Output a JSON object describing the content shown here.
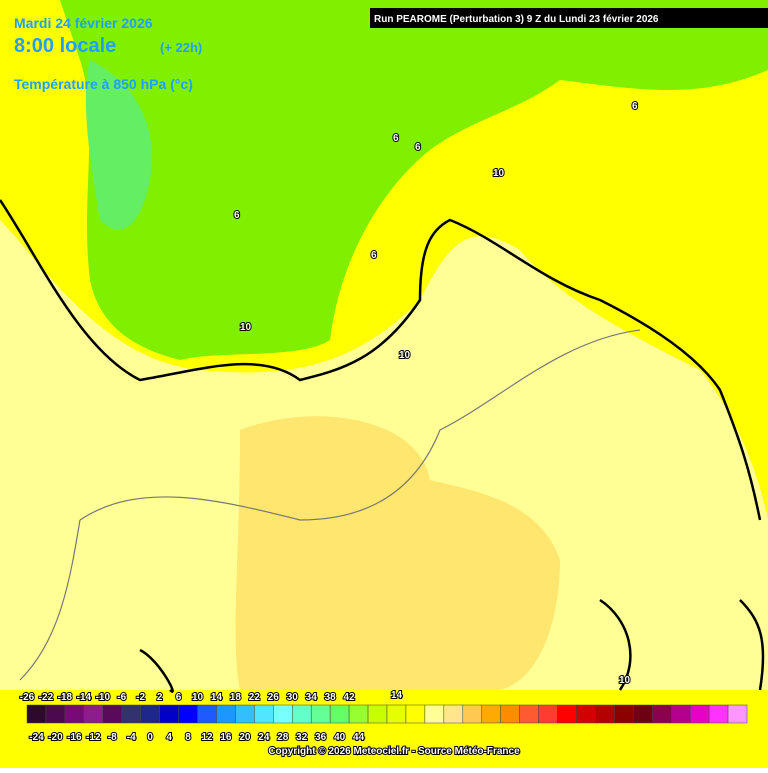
{
  "header": {
    "date": "Mardi 24 février 2026",
    "time": "8:00 locale",
    "offset": "(+ 22h)",
    "variable": "Température à 850 hPa (°c)",
    "run": "Run PEAROME (Perturbation 3) 9 Z du Lundi 23 février 2026"
  },
  "contour_labels": [
    "6",
    "6",
    "6",
    "6",
    "6",
    "10",
    "10",
    "10",
    "10",
    "14"
  ],
  "legend": {
    "top_labels": [
      -26,
      -22,
      -18,
      -14,
      -10,
      -6,
      -2,
      2,
      6,
      10,
      14,
      18,
      22,
      26,
      30,
      34,
      38,
      42
    ],
    "bottom_labels": [
      -24,
      -20,
      -16,
      -12,
      -8,
      -4,
      0,
      4,
      8,
      12,
      16,
      20,
      24,
      28,
      32,
      36,
      40,
      44
    ],
    "colors": [
      "#2d0a2d",
      "#4b0a4b",
      "#780a78",
      "#8c1e8c",
      "#5a0a5a",
      "#32326e",
      "#1e288c",
      "#0000c8",
      "#0000ff",
      "#1e5aff",
      "#1e96ff",
      "#32beff",
      "#50e6ff",
      "#78ffff",
      "#64ffc8",
      "#64ff96",
      "#64ff64",
      "#96ff32",
      "#c8ff00",
      "#e6ff00",
      "#ffff00",
      "#ffff96",
      "#ffe68c",
      "#ffc850",
      "#ffaa00",
      "#ff8c00",
      "#ff5a32",
      "#ff3c32",
      "#ff0000",
      "#d20000",
      "#b40000",
      "#8c0000",
      "#6e0014",
      "#8c0050",
      "#b4008c",
      "#e600c8",
      "#ff32ff",
      "#ff96ff"
    ]
  },
  "copyright": "Copyright © 2026 Meteociel.fr - Source Météo-France"
}
